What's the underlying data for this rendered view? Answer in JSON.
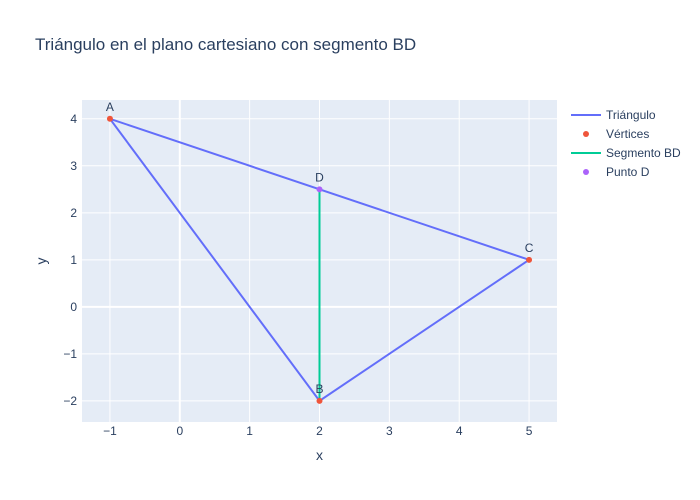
{
  "chart_data": {
    "type": "line",
    "title": "Triángulo en el plano cartesiano con segmento BD",
    "xlabel": "x",
    "ylabel": "y",
    "xlim": [
      -1.4,
      5.4
    ],
    "ylim": [
      -2.45,
      4.4
    ],
    "x_ticks": [
      -1,
      0,
      1,
      2,
      3,
      4,
      5
    ],
    "y_ticks": [
      -2,
      -1,
      0,
      1,
      2,
      3,
      4
    ],
    "x_tick_labels": [
      "−1",
      "0",
      "1",
      "2",
      "3",
      "4",
      "5"
    ],
    "y_tick_labels": [
      "−2",
      "−1",
      "0",
      "1",
      "2",
      "3",
      "4"
    ],
    "grid": true,
    "legend_position": "right",
    "background": "#e5ecf6",
    "series": [
      {
        "name": "Triángulo",
        "mode": "lines",
        "color": "#636efa",
        "x": [
          -1,
          2,
          5,
          -1
        ],
        "y": [
          4,
          -2,
          1,
          4
        ]
      },
      {
        "name": "Vértices",
        "mode": "markers+text",
        "color": "#ef553b",
        "x": [
          -1,
          2,
          5
        ],
        "y": [
          4,
          -2,
          1
        ],
        "labels": [
          "A",
          "B",
          "C"
        ]
      },
      {
        "name": "Segmento BD",
        "mode": "lines",
        "color": "#00cc96",
        "x": [
          2,
          2
        ],
        "y": [
          -2,
          2.5
        ]
      },
      {
        "name": "Punto D",
        "mode": "markers+text",
        "color": "#ab63fa",
        "x": [
          2
        ],
        "y": [
          2.5
        ],
        "labels": [
          "D"
        ]
      }
    ]
  }
}
